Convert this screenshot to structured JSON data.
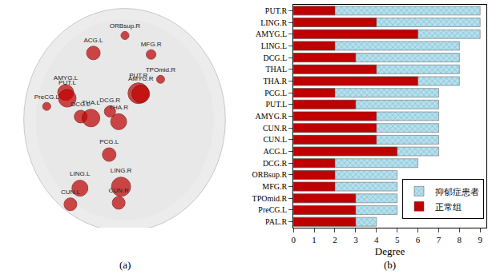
{
  "chart_data": [
    {
      "type": "scatter",
      "title": "(a)",
      "tick_labels": false,
      "color": "#c00000",
      "xlim": [
        0,
        305
      ],
      "ylim": [
        0,
        305
      ],
      "labels": [
        "ORBsup.R",
        "ACG.L",
        "MFG.R",
        "TPOmid.R",
        "PUT.R",
        "AMYG.R",
        "AMYG.L",
        "PUT.L",
        "PreCG.L",
        "DCG.L",
        "DCG.R",
        "THA.L",
        "THA.R",
        "PCG.L",
        "LING.L",
        "LING.R",
        "CUN.L",
        "CUN.R"
      ],
      "x": [
        153,
        113,
        186,
        198,
        170,
        173,
        78,
        80,
        54,
        97,
        134,
        110,
        145,
        133,
        96,
        148,
        84,
        145
      ],
      "y": [
        263,
        239,
        237,
        203,
        184,
        183,
        185,
        177,
        166,
        152,
        159,
        150,
        145,
        100,
        54,
        56,
        32,
        34
      ],
      "sizes": [
        10,
        17,
        12,
        10,
        26,
        22,
        20,
        22,
        10,
        16,
        14,
        22,
        20,
        17,
        20,
        24,
        16,
        16
      ]
    },
    {
      "type": "bar",
      "title": "(b)",
      "orientation": "horizontal",
      "legend": "lower right",
      "x_label": "Degree",
      "categories": [
        "PUT.R",
        "LING.R",
        "AMYG.L",
        "LING.L",
        "DCG.L",
        "THAL",
        "THA.R",
        "PCG.L",
        "PUT.L",
        "AMYG.R",
        "CUN.R",
        "CUN.L",
        "ACG.L",
        "DCG.R",
        "ORBsup.R",
        "MFG.R",
        "TPOmid.R",
        "PreCG.L",
        "PAL.R"
      ],
      "series": [
        {
          "name": "抑郁症患者",
          "color": "#b5e0ee",
          "marker": "crosshatch",
          "values": [
            9,
            9,
            9,
            8,
            8,
            8,
            8,
            7,
            7,
            7,
            7,
            7,
            7,
            6,
            5,
            5,
            5,
            5,
            4
          ]
        },
        {
          "name": "正常组",
          "color": "#c00000",
          "values": [
            2,
            4,
            6,
            2,
            3,
            4,
            6,
            2,
            3,
            4,
            4,
            4,
            5,
            2,
            2,
            2,
            3,
            3,
            3
          ]
        }
      ],
      "xlim": [
        0,
        9.3
      ],
      "xticks": [
        0,
        1,
        2,
        3,
        4,
        5,
        6,
        7,
        8,
        9
      ]
    }
  ]
}
